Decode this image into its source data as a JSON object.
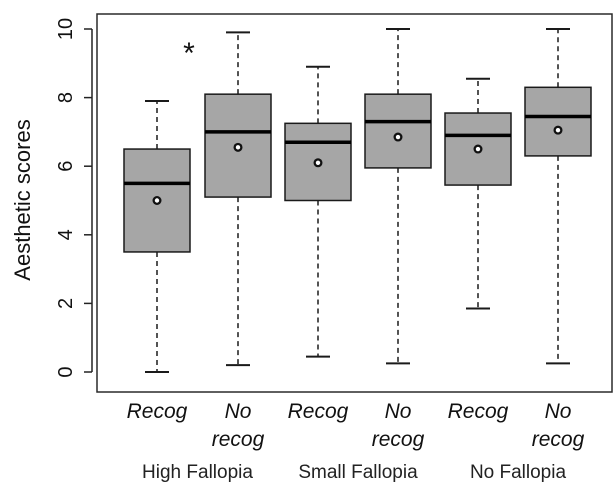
{
  "chart_data": {
    "type": "box",
    "ylabel": "Aesthetic scores",
    "ylim": [
      0,
      10
    ],
    "yticks": [
      "0",
      "2",
      "4",
      "6",
      "8",
      "10"
    ],
    "categories": [
      {
        "line1": "Recog",
        "line2": ""
      },
      {
        "line1": "No",
        "line2": "recog"
      },
      {
        "line1": "Recog",
        "line2": ""
      },
      {
        "line1": "No",
        "line2": "recog"
      },
      {
        "line1": "Recog",
        "line2": ""
      },
      {
        "line1": "No",
        "line2": "recog"
      }
    ],
    "groups": [
      "High Fallopia",
      "Small Fallopia",
      "No Fallopia"
    ],
    "boxes": [
      {
        "min": 0.0,
        "q1": 3.5,
        "median": 5.5,
        "q3": 6.5,
        "max": 7.9,
        "mean": 5.0
      },
      {
        "min": 0.2,
        "q1": 5.1,
        "median": 7.0,
        "q3": 8.1,
        "max": 9.9,
        "mean": 6.55
      },
      {
        "min": 0.45,
        "q1": 5.0,
        "median": 6.7,
        "q3": 7.25,
        "max": 8.9,
        "mean": 6.1
      },
      {
        "min": 0.25,
        "q1": 5.95,
        "median": 7.3,
        "q3": 8.1,
        "max": 10.0,
        "mean": 6.85
      },
      {
        "min": 1.85,
        "q1": 5.45,
        "median": 6.9,
        "q3": 7.55,
        "max": 8.55,
        "mean": 6.5
      },
      {
        "min": 0.25,
        "q1": 6.3,
        "median": 7.45,
        "q3": 8.3,
        "max": 10.0,
        "mean": 7.05
      }
    ],
    "annotations": [
      {
        "text": "*",
        "category_index": 0
      }
    ],
    "colors": {
      "box_fill": "#a6a6a6",
      "stroke": "#1a1a1a",
      "mean_dot": "#ffffff"
    },
    "grid": false,
    "legend": "none"
  }
}
